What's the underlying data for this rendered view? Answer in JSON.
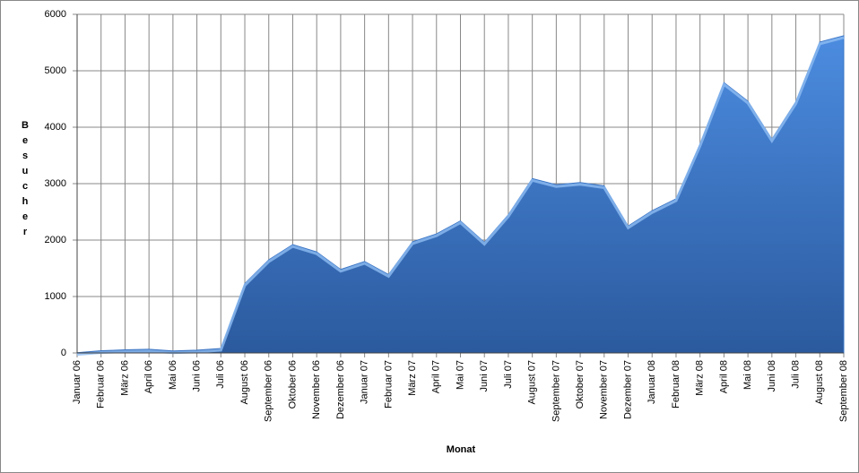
{
  "chart_data": {
    "type": "area",
    "x_label": "Monat",
    "y_label": "Besucher",
    "categories": [
      "Januar 06",
      "Februar 06",
      "März 06",
      "April 06",
      "Mai 06",
      "Juni 06",
      "Juli 06",
      "August 06",
      "September 06",
      "Oktober 06",
      "November 06",
      "Dezember 06",
      "Januar 07",
      "Februar 07",
      "März 07",
      "April 07",
      "Mai 07",
      "Juni 07",
      "Juli 07",
      "August 07",
      "September 07",
      "Oktober 07",
      "November 07",
      "Dezember 07",
      "Januar 08",
      "Februar 08",
      "März 08",
      "April 08",
      "Mai 08",
      "Juni 08",
      "Juli 08",
      "August 08",
      "September 08"
    ],
    "values": [
      5,
      40,
      55,
      65,
      35,
      50,
      80,
      1230,
      1650,
      1920,
      1790,
      1480,
      1620,
      1390,
      1970,
      2110,
      2340,
      1960,
      2450,
      3090,
      2980,
      3020,
      2960,
      2250,
      2520,
      2730,
      3700,
      4790,
      4460,
      3790,
      4450,
      5510,
      5620
    ],
    "color": "#3a74c4",
    "ylim": [
      0,
      6000
    ],
    "yticks": [
      0,
      1000,
      2000,
      3000,
      4000,
      5000,
      6000
    ],
    "grid": true
  }
}
